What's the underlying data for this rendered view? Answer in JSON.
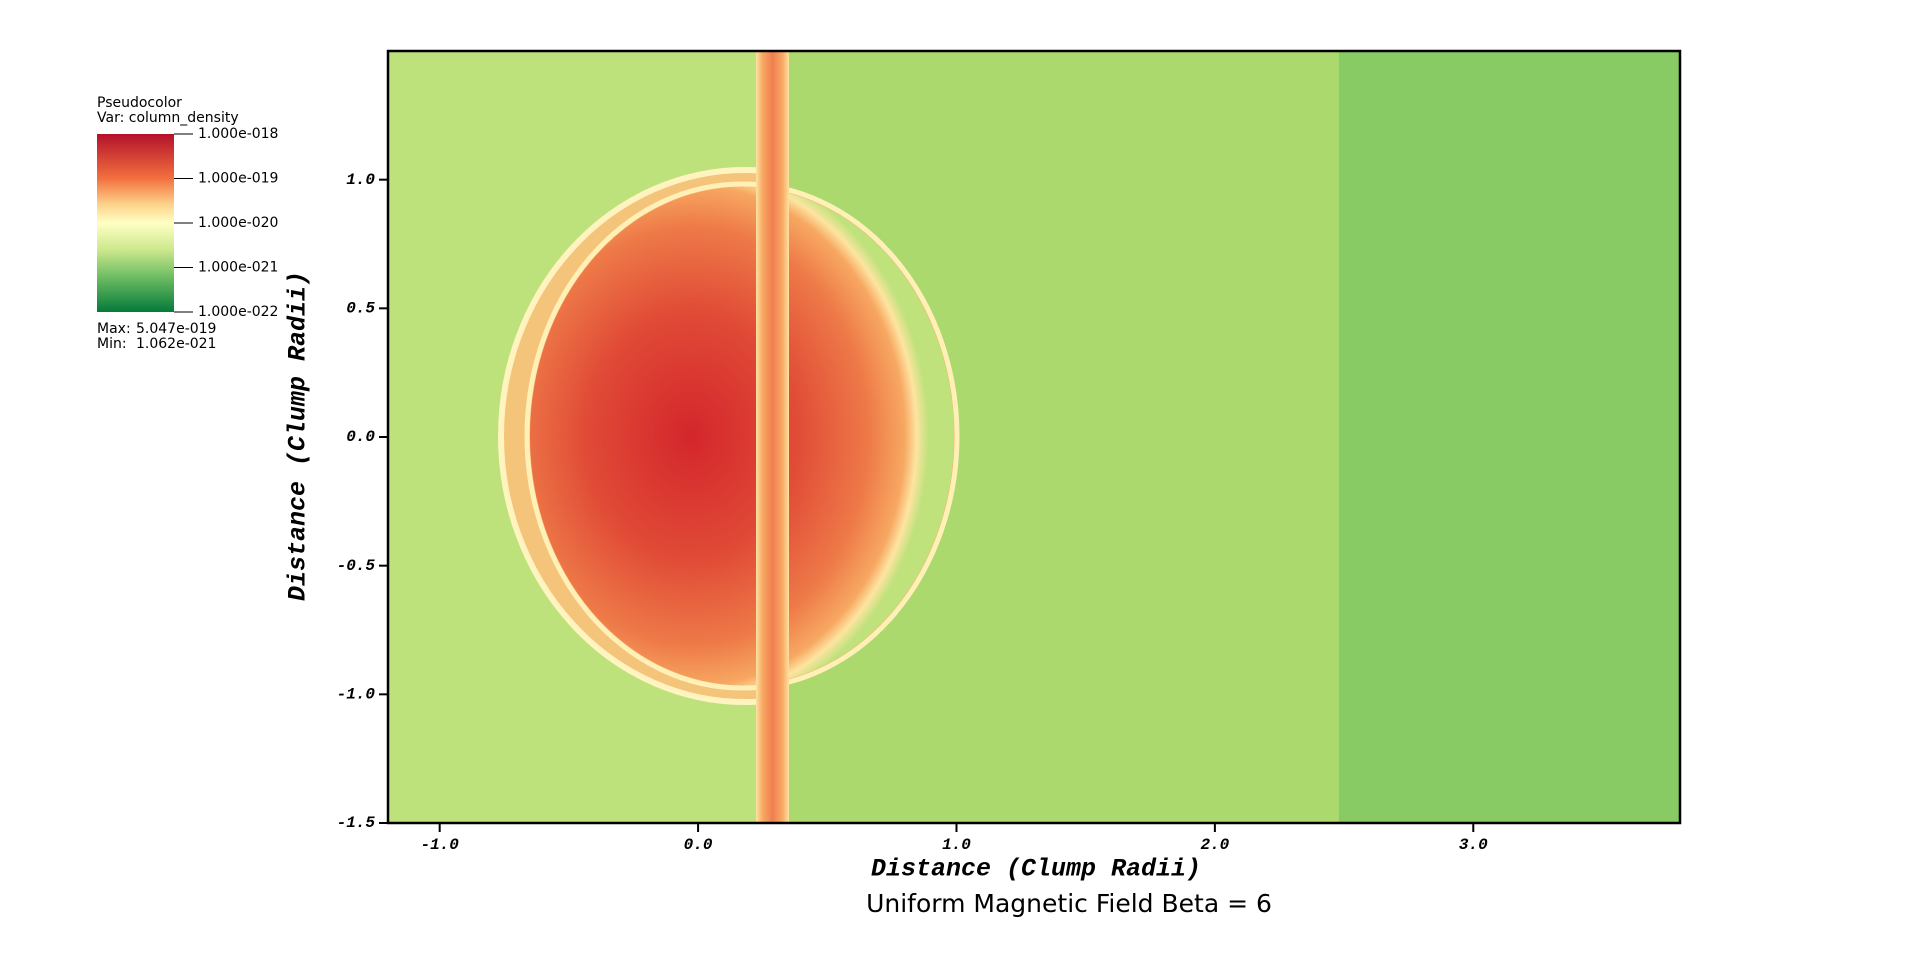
{
  "chart_data": {
    "type": "pseudocolor",
    "title": "Uniform Magnetic Field Beta = 6",
    "x_label": "Distance (Clump Radii)",
    "y_label": "Distance (Clump Radii)",
    "xlim": [
      -1.2,
      3.8
    ],
    "xticks": [
      {
        "value": -1,
        "label": "-1.0"
      },
      {
        "value": 0,
        "label": "0.0"
      },
      {
        "value": 1,
        "label": "1.0"
      },
      {
        "value": 2,
        "label": "2.0"
      },
      {
        "value": 3,
        "label": "3.0"
      }
    ],
    "ylim": [
      -1.5,
      1.5
    ],
    "yticks": [
      -1.5,
      {
        "value": -1,
        "label": "-1.0"
      },
      -0.5,
      {
        "value": 0,
        "label": "0.0"
      },
      0.5,
      {
        "value": 1,
        "label": "1.0"
      }
    ],
    "legend": {
      "plot": "Pseudocolor",
      "variable": "Var: column_density",
      "log_scale": true,
      "lim": [
        1e-22,
        1e-18
      ],
      "ticks": [
        {
          "value": 1e-18,
          "label": "1.000e-018"
        },
        {
          "value": 1e-19,
          "label": "1.000e-019"
        },
        {
          "value": 1e-20,
          "label": "1.000e-020"
        },
        {
          "value": 1e-21,
          "label": "1.000e-021"
        },
        {
          "value": 1e-22,
          "label": "1.000e-022"
        }
      ],
      "max_label": "Max:",
      "max": {
        "value": 5.047e-19,
        "label": "5.047e-019"
      },
      "min_label": "Min:",
      "min": {
        "value": 1.062e-21,
        "label": "1.062e-021"
      }
    }
  }
}
